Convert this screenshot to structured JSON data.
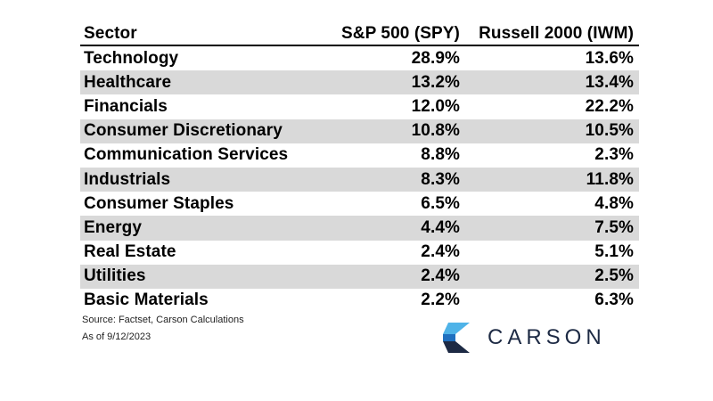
{
  "chart_data": {
    "type": "table",
    "columns": [
      "Sector",
      "S&P 500 (SPY)",
      "Russell 2000 (IWM)"
    ],
    "rows": [
      [
        "Technology",
        "28.9%",
        "13.6%"
      ],
      [
        "Healthcare",
        "13.2%",
        "13.4%"
      ],
      [
        "Financials",
        "12.0%",
        "22.2%"
      ],
      [
        "Consumer Discretionary",
        "10.8%",
        "10.5%"
      ],
      [
        "Communication Services",
        "8.8%",
        "2.3%"
      ],
      [
        "Industrials",
        "8.3%",
        "11.8%"
      ],
      [
        "Consumer Staples",
        "6.5%",
        "4.8%"
      ],
      [
        "Energy",
        "4.4%",
        "7.5%"
      ],
      [
        "Real Estate",
        "2.4%",
        "5.1%"
      ],
      [
        "Utilities",
        "2.4%",
        "2.5%"
      ],
      [
        "Basic Materials",
        "2.2%",
        "6.3%"
      ]
    ]
  },
  "footnotes": {
    "source": "Source: Factset, Carson Calculations",
    "as_of": "As of 9/12/2023"
  },
  "logo": {
    "wordmark": "CARSON",
    "colors": {
      "light_blue": "#4fb3e8",
      "mid_blue": "#1f6fbf",
      "dark_navy": "#1d2a44"
    }
  },
  "colors": {
    "row_shade": "#d9d9d9",
    "header_rule": "#000000"
  }
}
